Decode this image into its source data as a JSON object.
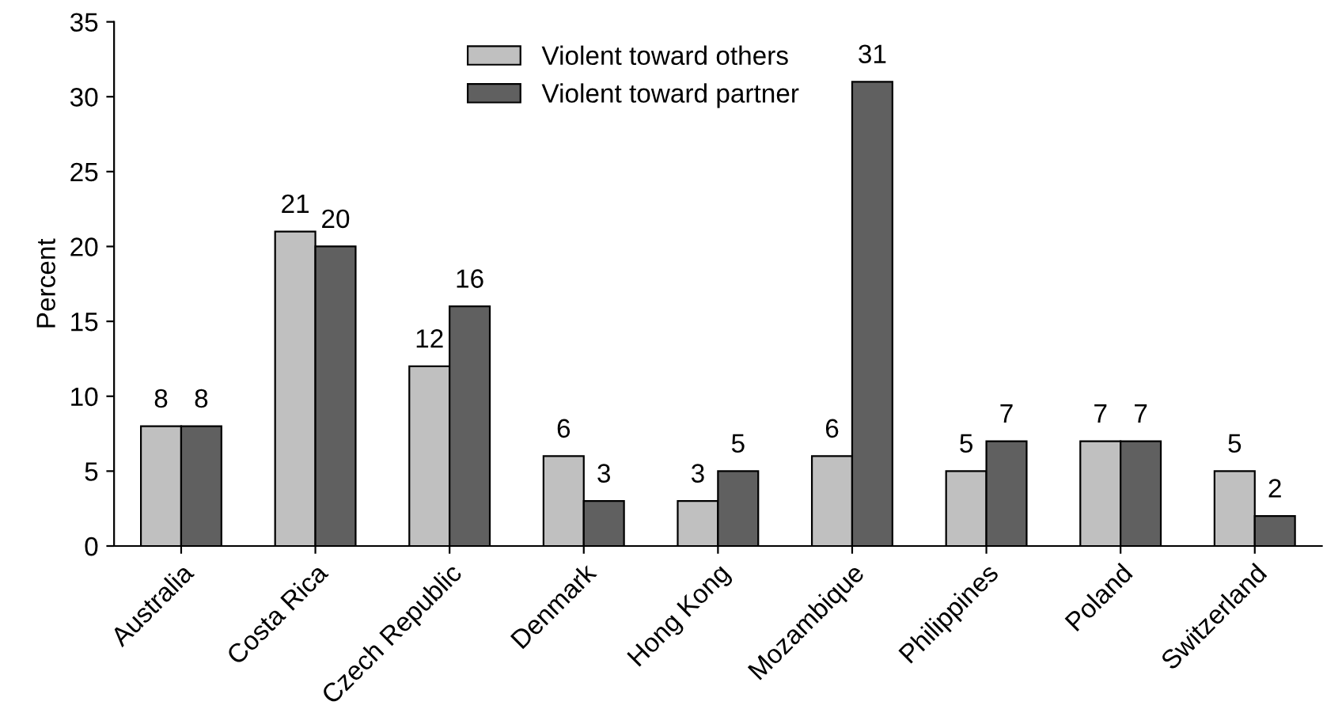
{
  "chart_data": {
    "type": "bar",
    "ylabel": "Percent",
    "categories": [
      "Australia",
      "Costa Rica",
      "Czech Republic",
      "Denmark",
      "Hong Kong",
      "Mozambique",
      "Philippines",
      "Poland",
      "Switzerland"
    ],
    "series": [
      {
        "name": "Violent toward others",
        "color": "#c0c0c0",
        "values": [
          8,
          21,
          12,
          6,
          3,
          6,
          5,
          7,
          5
        ]
      },
      {
        "name": "Violent toward partner",
        "color": "#606060",
        "values": [
          8,
          20,
          16,
          3,
          5,
          31,
          7,
          7,
          2
        ]
      }
    ],
    "ylim": [
      0,
      35
    ],
    "yticks": [
      0,
      5,
      10,
      15,
      20,
      25,
      30,
      35
    ],
    "data_labels": true,
    "grid": false,
    "legend": "top"
  }
}
